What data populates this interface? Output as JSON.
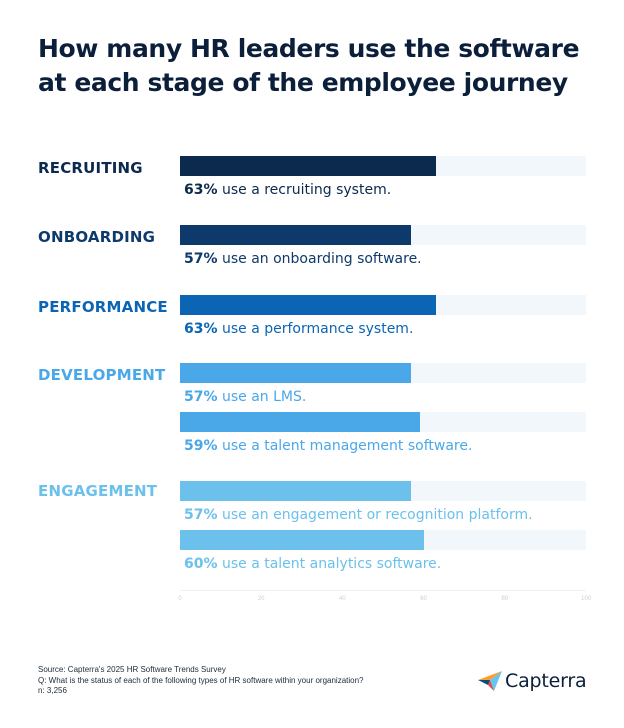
{
  "title_lines": [
    "How many HR leaders use the software",
    "at each stage of the employee journey"
  ],
  "colors": {
    "title": "#0b1f3a",
    "track": "#f2f7fb",
    "recruiting": "#0c2a4d",
    "onboarding": "#0d3a6b",
    "performance": "#0c64b4",
    "development": "#4aa8e8",
    "engagement": "#6cc0ec"
  },
  "chart_data": {
    "type": "bar",
    "orientation": "horizontal",
    "xlim": [
      0,
      100
    ],
    "x_ticks": [
      "0",
      "20",
      "40",
      "60",
      "80",
      "100"
    ],
    "groups": [
      {
        "category": "RECRUITING",
        "color": "#0c2a4d",
        "items": [
          {
            "value": 63,
            "percent_label": "63%",
            "text": "use a recruiting system."
          }
        ]
      },
      {
        "category": "ONBOARDING",
        "color": "#0d3a6b",
        "items": [
          {
            "value": 57,
            "percent_label": "57%",
            "text": "use an onboarding software."
          }
        ]
      },
      {
        "category": "PERFORMANCE",
        "color": "#0c64b4",
        "items": [
          {
            "value": 63,
            "percent_label": "63%",
            "text": "use a performance system."
          }
        ]
      },
      {
        "category": "DEVELOPMENT",
        "color": "#4aa8e8",
        "items": [
          {
            "value": 57,
            "percent_label": "57%",
            "text": "use an LMS."
          },
          {
            "value": 59,
            "percent_label": "59%",
            "text": "use a talent management software."
          }
        ]
      },
      {
        "category": "ENGAGEMENT",
        "color": "#6cc0ec",
        "items": [
          {
            "value": 57,
            "percent_label": "57%",
            "text": "use an engagement or recognition platform."
          },
          {
            "value": 60,
            "percent_label": "60%",
            "text": "use a talent analytics software."
          }
        ]
      }
    ]
  },
  "footer": {
    "source": "Source: Capterra's 2025 HR Software Trends Survey",
    "question": "Q: What is the status of each of the following types of HR software within your organization?",
    "n": "n: 3,256"
  },
  "logo": {
    "text": "Capterra",
    "icon": "capterra-logo-icon"
  }
}
